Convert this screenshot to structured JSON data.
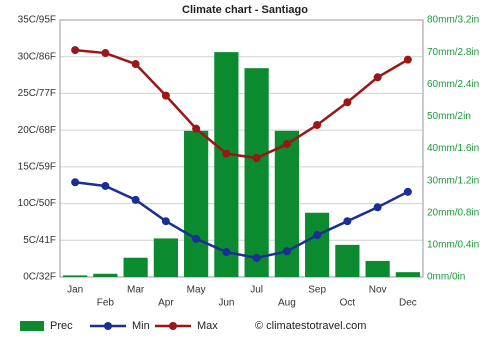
{
  "chart_data": {
    "type": "bar",
    "title": "Climate chart - Santiago",
    "categories": [
      "Jan",
      "Feb",
      "Mar",
      "Apr",
      "May",
      "Jun",
      "Jul",
      "Aug",
      "Sep",
      "Oct",
      "Nov",
      "Dec"
    ],
    "series": [
      {
        "name": "Prec",
        "type": "bar",
        "axis": "y2",
        "color": "#0b8a2f",
        "values": [
          0.5,
          1,
          6,
          12,
          45.5,
          70,
          65,
          45.5,
          20,
          10,
          5,
          1.5
        ]
      },
      {
        "name": "Min",
        "type": "line",
        "axis": "y",
        "color": "#1a2f95",
        "values": [
          12.9,
          12.4,
          10.5,
          7.6,
          5.2,
          3.4,
          2.6,
          3.5,
          5.7,
          7.6,
          9.5,
          11.6
        ]
      },
      {
        "name": "Max",
        "type": "line",
        "axis": "y",
        "color": "#9b1616",
        "values": [
          30.9,
          30.5,
          29.0,
          24.7,
          20.2,
          16.8,
          16.2,
          18.1,
          20.7,
          23.8,
          27.2,
          29.6
        ]
      }
    ],
    "ylim": [
      0,
      35
    ],
    "yticks": [
      {
        "value": 0,
        "label": "0C/32F"
      },
      {
        "value": 5,
        "label": "5C/41F"
      },
      {
        "value": 10,
        "label": "10C/50F"
      },
      {
        "value": 15,
        "label": "15C/59F"
      },
      {
        "value": 20,
        "label": "20C/68F"
      },
      {
        "value": 25,
        "label": "25C/77F"
      },
      {
        "value": 30,
        "label": "30C/86F"
      },
      {
        "value": 35,
        "label": "35C/95F"
      }
    ],
    "y2lim": [
      0,
      80
    ],
    "y2ticks": [
      {
        "value": 0,
        "label": "0mm/0in"
      },
      {
        "value": 10,
        "label": "10mm/0.4in"
      },
      {
        "value": 20,
        "label": "20mm/0.8in"
      },
      {
        "value": 30,
        "label": "30mm/1.2in"
      },
      {
        "value": 40,
        "label": "40mm/1.6in"
      },
      {
        "value": 50,
        "label": "50mm/2in"
      },
      {
        "value": 60,
        "label": "60mm/2.4in"
      },
      {
        "value": 70,
        "label": "70mm/2.8in"
      },
      {
        "value": 80,
        "label": "80mm/3.2in"
      }
    ],
    "grid": true,
    "legend": "bottom",
    "credit": "© climatestotravel.com"
  }
}
